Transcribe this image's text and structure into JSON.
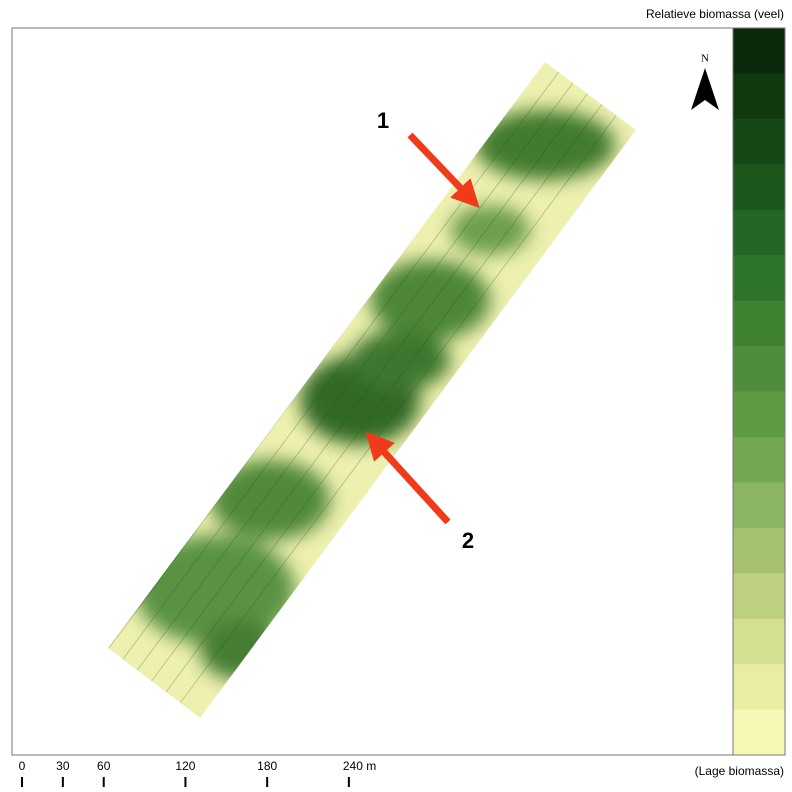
{
  "legend": {
    "title": "Relatieve biomassa (veel)",
    "bottom_label": "(Lage biomassa)",
    "colors": [
      "#0b2a0b",
      "#0f3a10",
      "#144816",
      "#1b561b",
      "#246624",
      "#2f742b",
      "#3e8232",
      "#4e8d3b",
      "#5f9a45",
      "#74a752",
      "#8bb560",
      "#a4c26f",
      "#bcd07f",
      "#d4df90",
      "#e9eda3",
      "#f8f8b6"
    ]
  },
  "north": "N",
  "annotations": [
    "1",
    "2"
  ],
  "scale_bar": {
    "ticks": [
      0,
      30,
      60,
      120,
      180,
      {
        "value": 240,
        "label": "240 m"
      }
    ]
  }
}
